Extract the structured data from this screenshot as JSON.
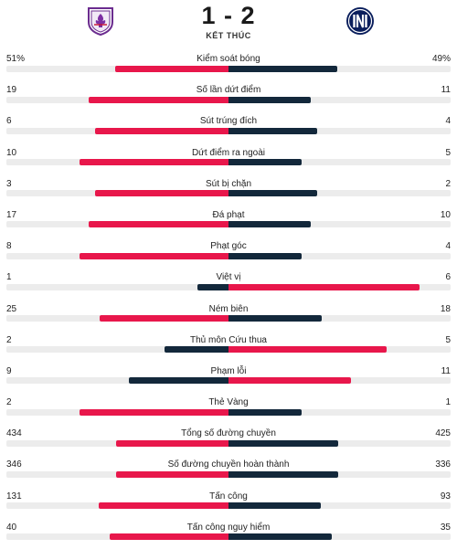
{
  "match": {
    "score": "1 - 2",
    "status": "KẾT THÚC",
    "home_logo": "fiorentina-crest-icon",
    "away_logo": "inter-crest-icon"
  },
  "colors": {
    "home_winner": "#e8174b",
    "away_winner": "#e8174b",
    "home_loser": "#13283b",
    "away_loser": "#13283b",
    "track": "#ececec"
  },
  "stats": [
    {
      "label": "Kiểm soát bóng",
      "home": "51%",
      "away": "49%",
      "home_frac": 0.51,
      "away_frac": 0.49,
      "max": 1.0,
      "leader": "home"
    },
    {
      "label": "Số lần dứt điểm",
      "home": "19",
      "away": "11",
      "home_frac": 0.63,
      "away_frac": 0.37,
      "max": 1.0,
      "leader": "home"
    },
    {
      "label": "Sút trúng đích",
      "home": "6",
      "away": "4",
      "home_frac": 0.6,
      "away_frac": 0.4,
      "max": 1.0,
      "leader": "home"
    },
    {
      "label": "Dứt điểm ra ngoài",
      "home": "10",
      "away": "5",
      "home_frac": 0.67,
      "away_frac": 0.33,
      "max": 1.0,
      "leader": "home"
    },
    {
      "label": "Sút bị chặn",
      "home": "3",
      "away": "2",
      "home_frac": 0.6,
      "away_frac": 0.4,
      "max": 1.0,
      "leader": "home"
    },
    {
      "label": "Đá phạt",
      "home": "17",
      "away": "10",
      "home_frac": 0.63,
      "away_frac": 0.37,
      "max": 1.0,
      "leader": "home"
    },
    {
      "label": "Phạt góc",
      "home": "8",
      "away": "4",
      "home_frac": 0.67,
      "away_frac": 0.33,
      "max": 1.0,
      "leader": "home"
    },
    {
      "label": "Việt vị",
      "home": "1",
      "away": "6",
      "home_frac": 0.14,
      "away_frac": 0.86,
      "max": 1.0,
      "leader": "away"
    },
    {
      "label": "Ném biên",
      "home": "25",
      "away": "18",
      "home_frac": 0.58,
      "away_frac": 0.42,
      "max": 1.0,
      "leader": "home"
    },
    {
      "label": "Thủ môn Cứu thua",
      "home": "2",
      "away": "5",
      "home_frac": 0.29,
      "away_frac": 0.71,
      "max": 1.0,
      "leader": "away"
    },
    {
      "label": "Phạm lỗi",
      "home": "9",
      "away": "11",
      "home_frac": 0.45,
      "away_frac": 0.55,
      "max": 1.0,
      "leader": "away"
    },
    {
      "label": "Thẻ Vàng",
      "home": "2",
      "away": "1",
      "home_frac": 0.67,
      "away_frac": 0.33,
      "max": 1.0,
      "leader": "home"
    },
    {
      "label": "Tổng số đường chuyền",
      "home": "434",
      "away": "425",
      "home_frac": 0.505,
      "away_frac": 0.495,
      "max": 1.0,
      "leader": "home"
    },
    {
      "label": "Số đường chuyền hoàn thành",
      "home": "346",
      "away": "336",
      "home_frac": 0.507,
      "away_frac": 0.493,
      "max": 1.0,
      "leader": "home"
    },
    {
      "label": "Tấn công",
      "home": "131",
      "away": "93",
      "home_frac": 0.585,
      "away_frac": 0.415,
      "max": 1.0,
      "leader": "home"
    },
    {
      "label": "Tấn công nguy hiểm",
      "home": "40",
      "away": "35",
      "home_frac": 0.533,
      "away_frac": 0.467,
      "max": 1.0,
      "leader": "home"
    }
  ]
}
